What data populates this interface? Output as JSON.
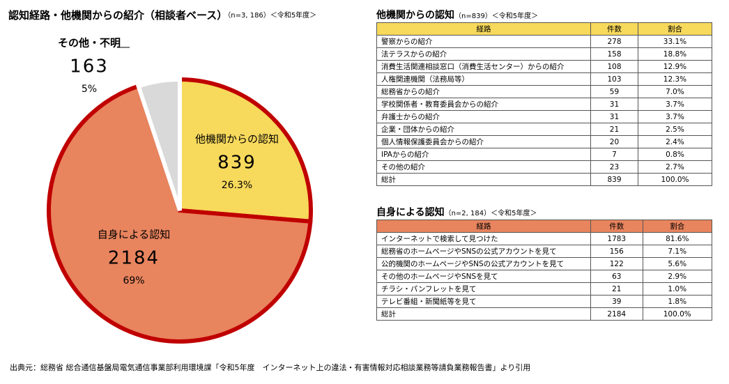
{
  "chart_data": {
    "type": "pie",
    "title": "認知経路・他機関からの紹介（相談者ベース）",
    "subtitle": "（n=3, 186）＜令和5年度＞",
    "categories": [
      "他機関からの認知",
      "自身による認知",
      "その他・不明"
    ],
    "values": [
      839,
      2184,
      163
    ],
    "shares": [
      26.3,
      69,
      5
    ],
    "share_labels": [
      "26.3%",
      "69%",
      "5%"
    ],
    "colors": [
      "#f7d95c",
      "#e8845e",
      "#d9d9d9"
    ],
    "border_colors": [
      "#c00000",
      "#c00000",
      "#ffffff"
    ]
  },
  "tables": [
    {
      "title": "他機関からの認知",
      "subtitle": "（n=839）＜令和5年度＞",
      "header_color": "#f7d95c",
      "header": [
        "経路",
        "件数",
        "割合"
      ],
      "rows": [
        [
          "警察からの紹介",
          "278",
          "33.1%"
        ],
        [
          "法テラスからの紹介",
          "158",
          "18.8%"
        ],
        [
          "消費生活関連相談窓口（消費生活センター）からの紹介",
          "108",
          "12.9%"
        ],
        [
          "人権関連機関（法務局等）",
          "103",
          "12.3%"
        ],
        [
          "総務省からの紹介",
          "59",
          "7.0%"
        ],
        [
          "学校関係者・教育委員会からの紹介",
          "31",
          "3.7%"
        ],
        [
          "弁護士からの紹介",
          "31",
          "3.7%"
        ],
        [
          "企業・団体からの紹介",
          "21",
          "2.5%"
        ],
        [
          "個人情報保護委員会からの紹介",
          "20",
          "2.4%"
        ],
        [
          "IPAからの紹介",
          "7",
          "0.8%"
        ],
        [
          "その他の紹介",
          "23",
          "2.7%"
        ],
        [
          "総計",
          "839",
          "100.0%"
        ]
      ]
    },
    {
      "title": "自身による認知",
      "subtitle": "（n=2, 184）＜令和5年度＞",
      "header_color": "#e8845e",
      "header": [
        "経路",
        "件数",
        "割合"
      ],
      "rows": [
        [
          "インターネットで検索して見つけた",
          "1783",
          "81.6%"
        ],
        [
          "総務省のホームページやSNSの公式アカウントを見て",
          "156",
          "7.1%"
        ],
        [
          "公的機関のホームページやSNSの公式アカウントを見て",
          "122",
          "5.6%"
        ],
        [
          "その他のホームページやSNSを見て",
          "63",
          "2.9%"
        ],
        [
          "チラシ・パンフレットを見て",
          "21",
          "1.0%"
        ],
        [
          "テレビ番組・新聞紙等を見て",
          "39",
          "1.8%"
        ],
        [
          "総計",
          "2184",
          "100.0%"
        ]
      ]
    }
  ],
  "source": "出典元：総務省 総合通信基盤局電気通信事業部利用環境課「令和5年度　インターネット上の違法・有害情報対応相談業務等請負業務報告書」より引用"
}
